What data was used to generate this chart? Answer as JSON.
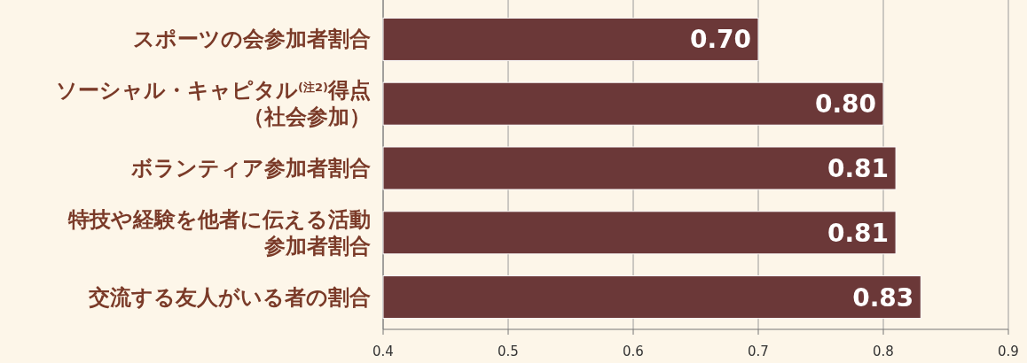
{
  "chart_data": {
    "type": "bar",
    "orientation": "horizontal",
    "categories": [
      "スポーツの会参加者割合",
      "ソーシャル・キャピタル$^{(注2)}$得点（社会参加）",
      "ボランティア参加者割合",
      "特技や経験を他者に伝える活動参加者割合",
      "交流する友人がいる者の割合"
    ],
    "values": [
      0.7,
      0.8,
      0.81,
      0.81,
      0.83
    ],
    "value_labels": [
      "0.70",
      "0.80",
      "0.81",
      "0.81",
      "0.83"
    ],
    "color": "#6b3838",
    "xlim": [
      0.4,
      0.9
    ],
    "xticks": [
      0.4,
      0.5,
      0.6,
      0.7,
      0.8,
      0.9
    ],
    "grid": "x"
  }
}
